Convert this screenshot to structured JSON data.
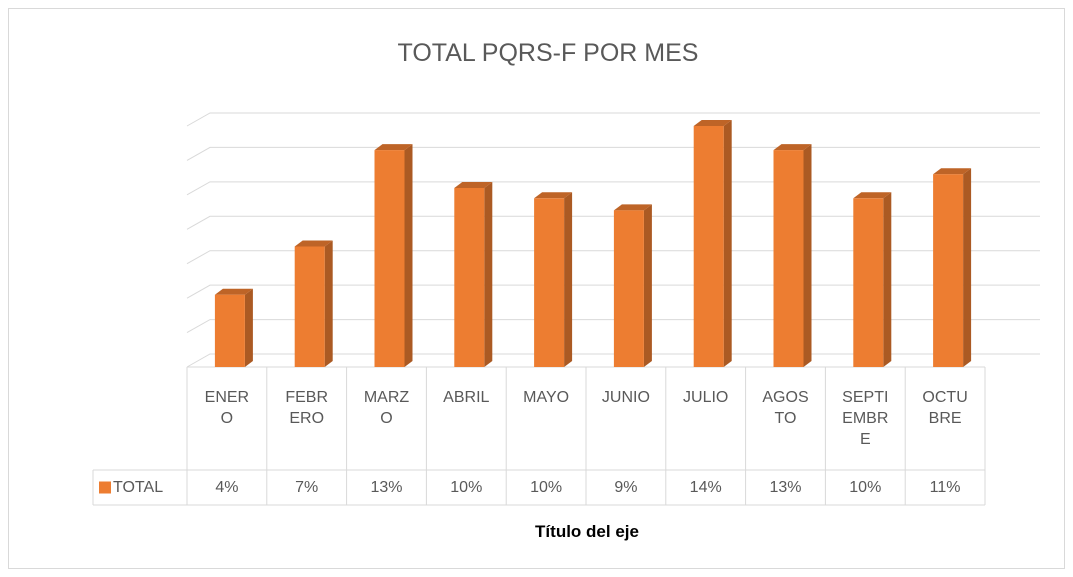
{
  "chart_data": {
    "type": "bar3d",
    "title": "TOTAL  PQRS-F POR MES",
    "x_label": "Título del eje",
    "categories": [
      "ENERO",
      "FEBRERO",
      "MARZO",
      "ABRIL",
      "MAYO",
      "JUNIO",
      "JULIO",
      "AGOSTO",
      "SEPTIEMBRE",
      "OCTUBRE"
    ],
    "series": [
      {
        "name": "TOTAL",
        "color": "#ed7d31",
        "values": [
          4.2,
          7,
          12.6,
          10.4,
          9.8,
          9.1,
          14,
          12.6,
          9.8,
          11.2
        ],
        "value_labels": [
          "4%",
          "7%",
          "13%",
          "10%",
          "10%",
          "9%",
          "14%",
          "13%",
          "10%",
          "11%"
        ]
      }
    ],
    "ylim": [
      0,
      14
    ],
    "yticks": [
      0,
      2,
      4,
      6,
      8,
      10,
      12,
      14
    ],
    "grid": true,
    "data_table": true
  }
}
